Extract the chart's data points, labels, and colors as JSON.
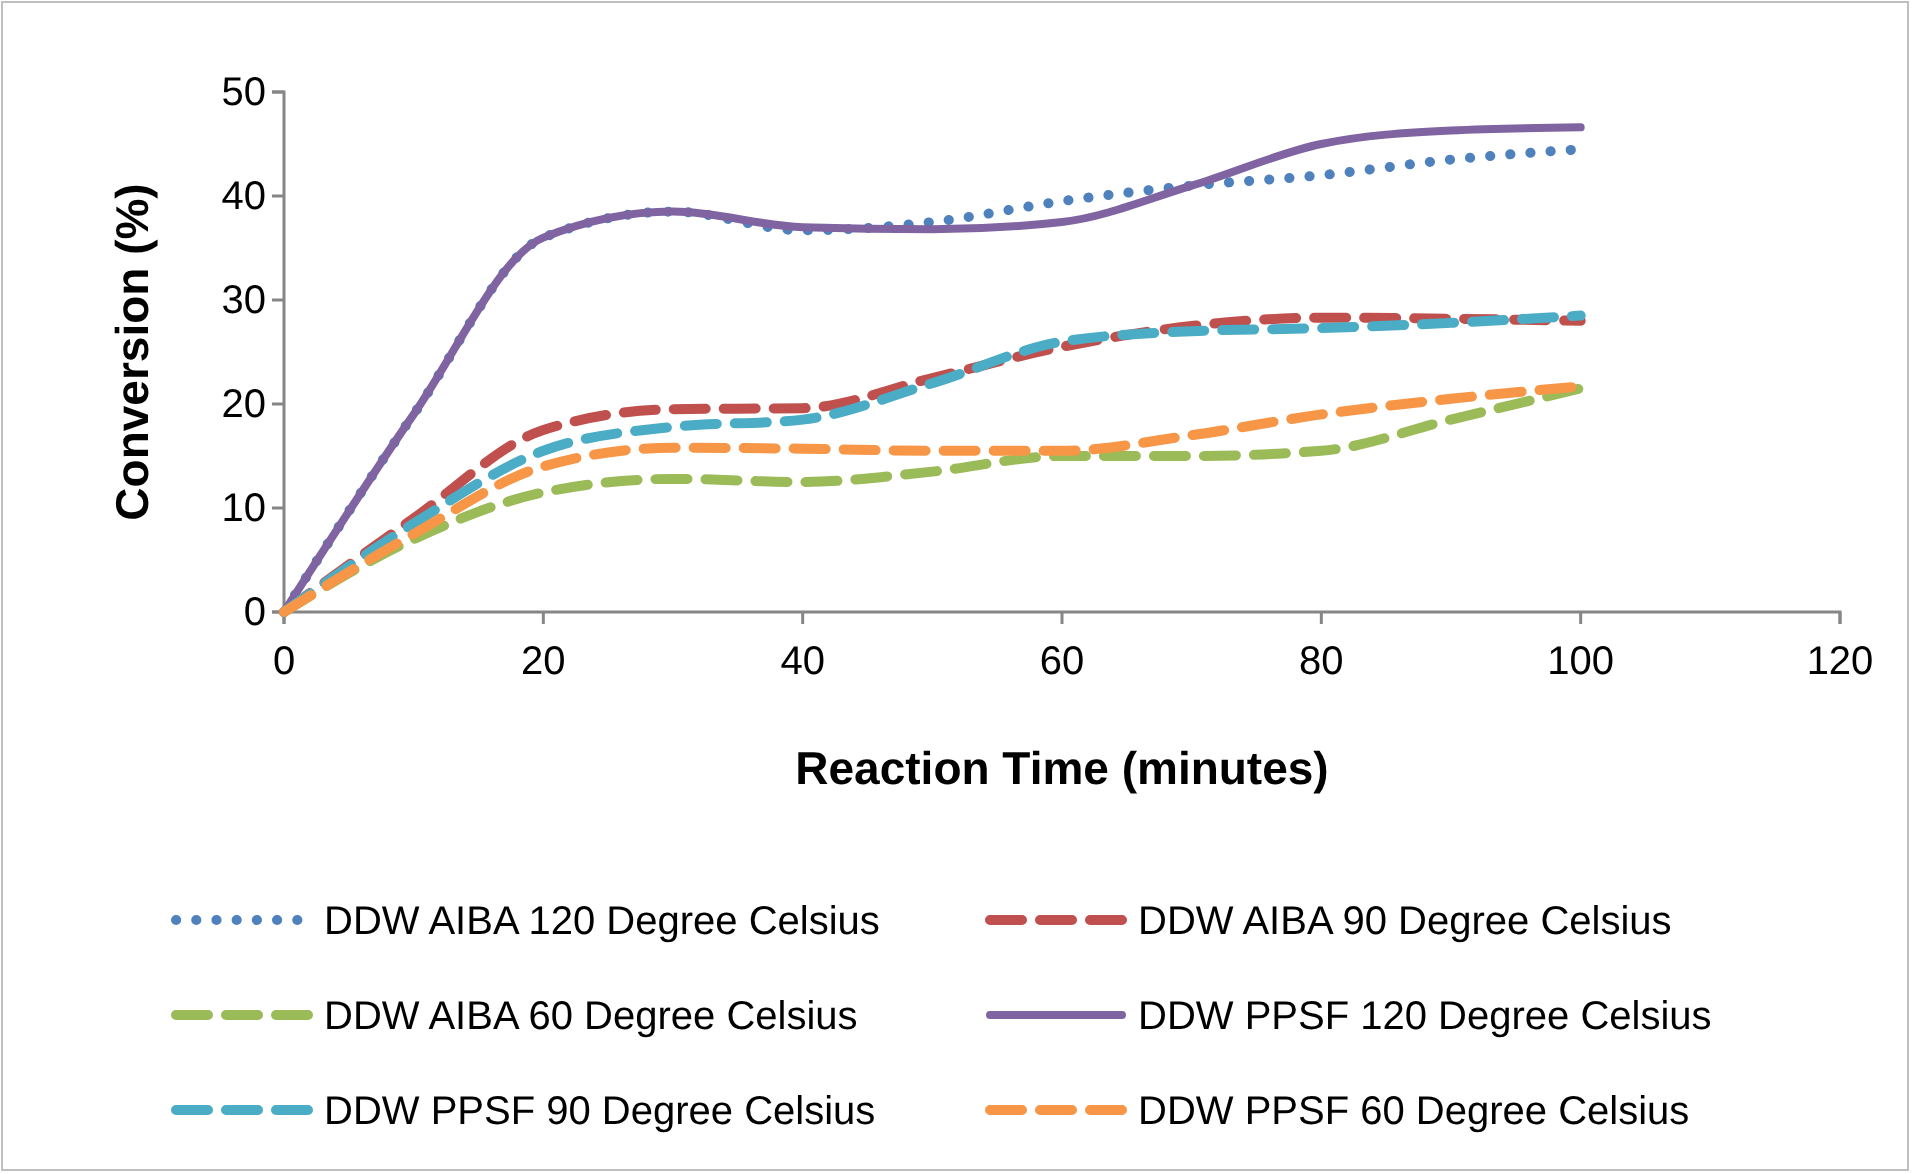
{
  "chart_data": {
    "type": "line",
    "xlabel": "Reaction Time (minutes)",
    "ylabel": "Conversion (%)",
    "x": [
      0,
      10,
      20,
      30,
      40,
      50,
      60,
      70,
      80,
      90,
      100
    ],
    "xlim": [
      0,
      120
    ],
    "xticks": [
      0,
      20,
      40,
      60,
      80,
      100,
      120
    ],
    "ylim": [
      0,
      50
    ],
    "yticks": [
      0,
      10,
      20,
      30,
      40,
      50
    ],
    "grid": false,
    "legend": "bottom",
    "marker": "none",
    "series": [
      {
        "name": "DDW AIBA 120 Degree Celsius",
        "color": "#4f81bd",
        "line_style": "dotted",
        "values": [
          0,
          19,
          36,
          38.5,
          36.7,
          37.5,
          39.5,
          41,
          42,
          43.5,
          44.5
        ]
      },
      {
        "name": "DDW AIBA 90 Degree Celsius",
        "color": "#c0504d",
        "line_style": "dashed",
        "values": [
          0,
          9,
          17.5,
          19.5,
          19.6,
          22.5,
          25.5,
          27.5,
          28.3,
          28.2,
          28
        ]
      },
      {
        "name": "DDW AIBA 60 Degree Celsius",
        "color": "#9bbb59",
        "line_style": "dashed",
        "values": [
          0,
          7,
          11.5,
          12.8,
          12.5,
          13.5,
          15,
          15,
          15.5,
          18.5,
          21.5
        ]
      },
      {
        "name": "DDW PPSF 120 Degree Celsius",
        "color": "#8064a2",
        "line_style": "solid",
        "values": [
          0,
          19,
          36,
          38.5,
          37,
          36.8,
          37.5,
          41,
          45,
          46.3,
          46.6
        ]
      },
      {
        "name": "DDW PPSF 90 Degree Celsius",
        "color": "#4bacc6",
        "line_style": "dashed",
        "values": [
          0,
          8.5,
          15.5,
          17.8,
          18.5,
          22,
          26,
          27,
          27.3,
          27.8,
          28.5
        ]
      },
      {
        "name": "DDW PPSF 60 Degree Celsius",
        "color": "#f79646",
        "line_style": "dashed",
        "values": [
          0,
          7.5,
          14,
          15.8,
          15.7,
          15.5,
          15.5,
          17,
          19,
          20.5,
          21.7
        ]
      }
    ]
  }
}
